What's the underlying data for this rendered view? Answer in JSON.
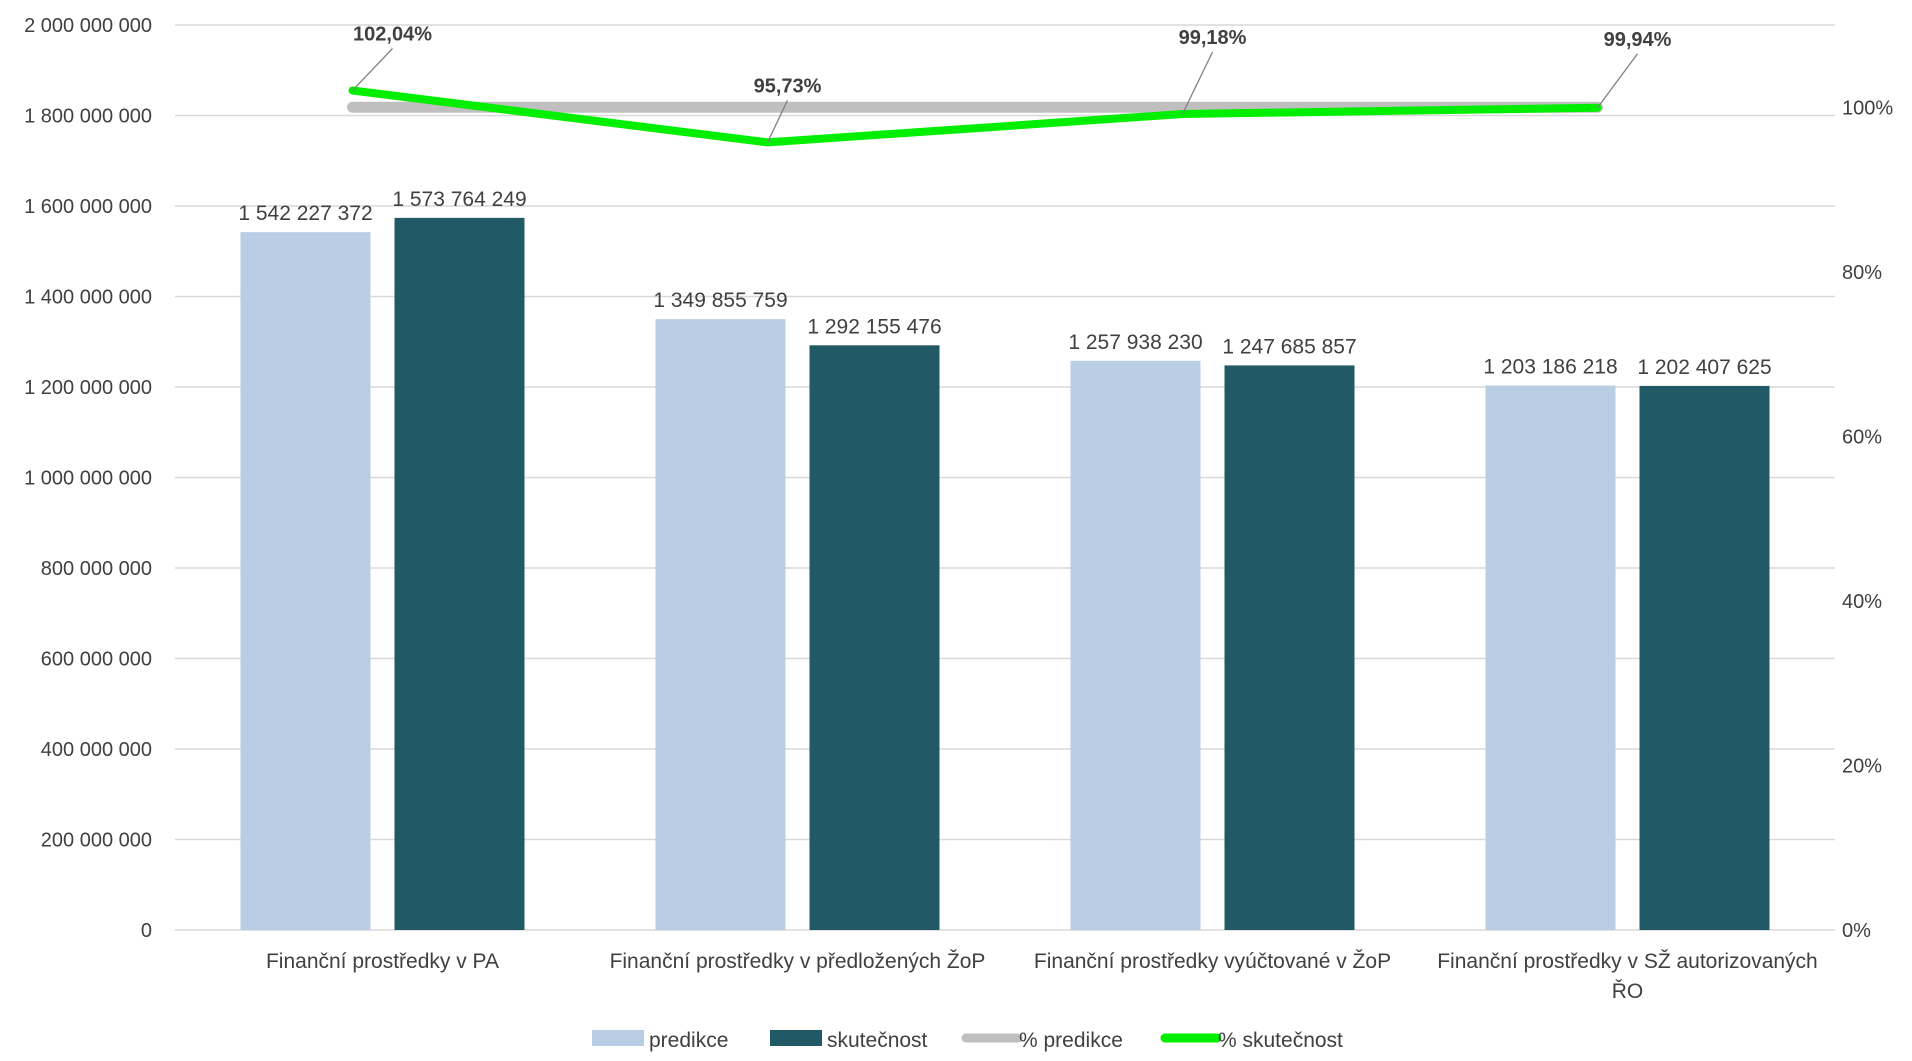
{
  "chart_data": {
    "type": "bar",
    "categories": [
      [
        "Finanční prostředky v PA"
      ],
      [
        "Finanční prostředky v předložených ŽoP"
      ],
      [
        "Finanční prostředky vyúčtované v ŽoP"
      ],
      [
        "Finanční prostředky v SŽ autorizovaných",
        "ŘO"
      ]
    ],
    "series": [
      {
        "name": "predikce",
        "type": "bar",
        "axis": "left",
        "color": "#b9cde4",
        "values": [
          1542227372,
          1349855759,
          1257938230,
          1203186218
        ],
        "labels": [
          "1 542 227 372",
          "1 349 855 759",
          "1 257 938 230",
          "1 203 186 218"
        ]
      },
      {
        "name": "skutečnost",
        "type": "bar",
        "axis": "left",
        "color": "#215967",
        "values": [
          1573764249,
          1292155476,
          1247685857,
          1202407625
        ],
        "labels": [
          "1 573 764 249",
          "1 292 155 476",
          "1 247 685 857",
          "1 202 407 625"
        ]
      },
      {
        "name": "% predikce",
        "type": "line",
        "axis": "right",
        "color": "#bfbfbf",
        "values": [
          100,
          100,
          100,
          100
        ]
      },
      {
        "name": "% skutečnost",
        "type": "line",
        "axis": "right",
        "color": "#00ee00",
        "values": [
          102.04,
          95.73,
          99.18,
          99.94
        ],
        "labels": [
          "102,04%",
          "95,73%",
          "99,18%",
          "99,94%"
        ]
      }
    ],
    "ylim": [
      0,
      2000000000
    ],
    "yticks": [
      0,
      200000000,
      400000000,
      600000000,
      800000000,
      1000000000,
      1200000000,
      1400000000,
      1600000000,
      1800000000,
      2000000000
    ],
    "ytick_labels": [
      "0",
      "200 000 000",
      "400 000 000",
      "600 000 000",
      "800 000 000",
      "1 000 000 000",
      "1 200 000 000",
      "1 400 000 000",
      "1 600 000 000",
      "1 800 000 000",
      "2 000 000 000"
    ],
    "y2lim": [
      0,
      110
    ],
    "y2ticks": [
      0,
      20,
      40,
      60,
      80,
      100
    ],
    "y2tick_labels": [
      "0%",
      "20%",
      "40%",
      "60%",
      "80%",
      "100%"
    ],
    "grid": true,
    "legend_position": "bottom",
    "xlabel": "",
    "ylabel": "",
    "title": ""
  }
}
